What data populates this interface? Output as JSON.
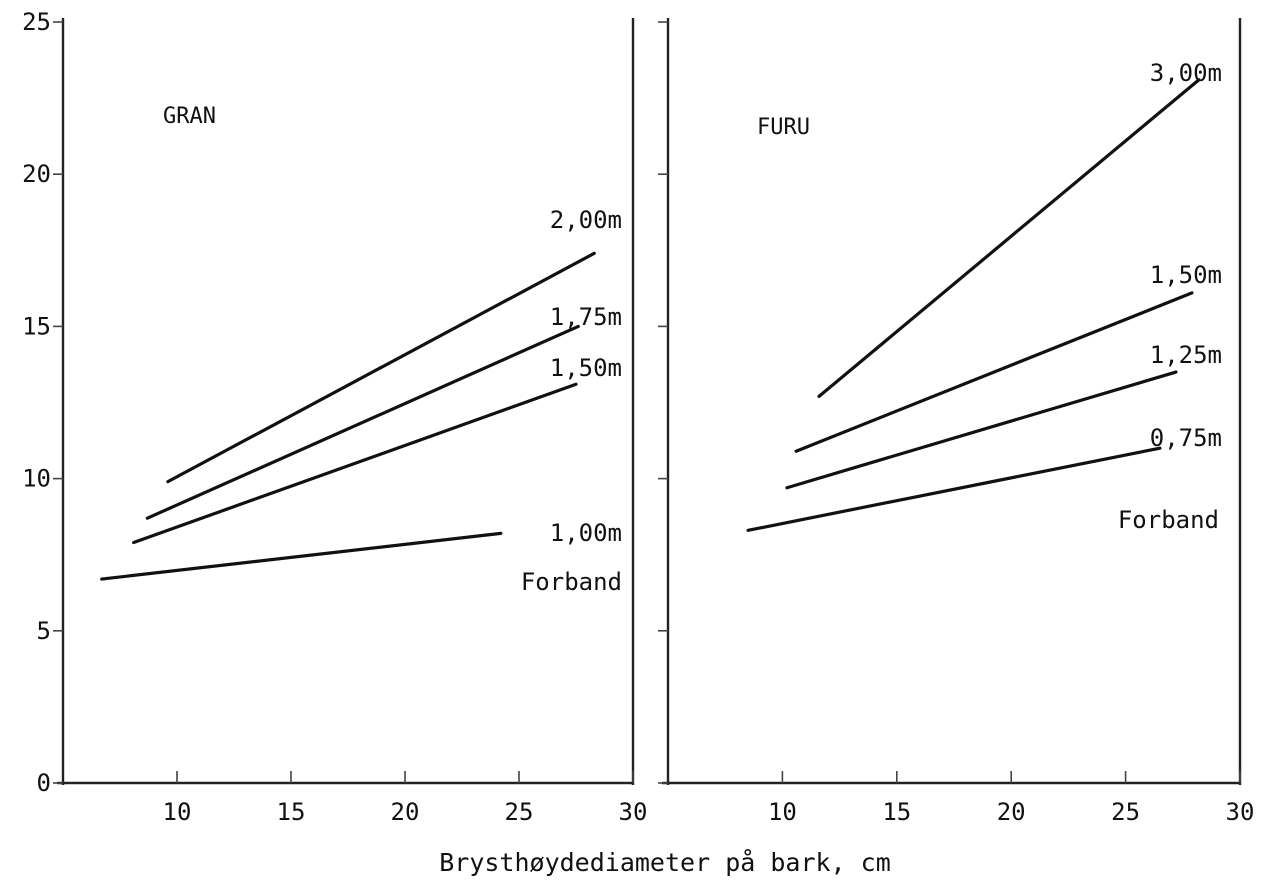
{
  "chart_data": {
    "type": "line",
    "xlabel": "Brysthøydediameter på bark, cm",
    "ylim": [
      0,
      25
    ],
    "yticks": [
      "0",
      "5",
      "10",
      "15",
      "20",
      "25"
    ],
    "xticks": [
      "10",
      "15",
      "20",
      "25",
      "30"
    ],
    "panels": [
      {
        "title": "GRAN",
        "legend_title": "Forband",
        "xlim": [
          5,
          30
        ],
        "series": [
          {
            "name": "2,00m",
            "x": [
              9.6,
              28.3
            ],
            "y": [
              9.9,
              17.4
            ]
          },
          {
            "name": "1,75m",
            "x": [
              8.7,
              27.6
            ],
            "y": [
              8.7,
              15.0
            ]
          },
          {
            "name": "1,50m",
            "x": [
              8.1,
              27.5
            ],
            "y": [
              7.9,
              13.1
            ]
          },
          {
            "name": "1,00m",
            "x": [
              6.7,
              24.2
            ],
            "y": [
              6.7,
              8.2
            ]
          }
        ]
      },
      {
        "title": "FURU",
        "legend_title": "Forband",
        "xlim": [
          5,
          30
        ],
        "series": [
          {
            "name": "3,00m",
            "x": [
              11.6,
              28.2
            ],
            "y": [
              12.7,
              23.1
            ]
          },
          {
            "name": "1,50m",
            "x": [
              10.6,
              27.9
            ],
            "y": [
              10.9,
              16.1
            ]
          },
          {
            "name": "1,25m",
            "x": [
              10.2,
              27.2
            ],
            "y": [
              9.7,
              13.5
            ]
          },
          {
            "name": "0,75m",
            "x": [
              8.5,
              26.5
            ],
            "y": [
              8.3,
              11.0
            ]
          }
        ]
      }
    ]
  }
}
